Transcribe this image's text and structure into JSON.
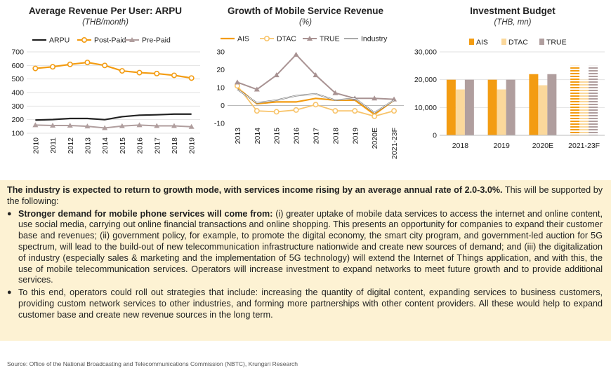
{
  "charts": {
    "arpu": {
      "title": "Average Revenue Per User: ARPU",
      "subtitle": "(THB/month)",
      "chart_data": {
        "type": "line",
        "x": [
          "2010",
          "2011",
          "2012",
          "2013",
          "2014",
          "2015",
          "2016",
          "2017",
          "2018",
          "2019"
        ],
        "series": [
          {
            "name": "ARPU",
            "values": [
              197,
              201,
              209,
              209,
              200,
              222,
              233,
              236,
              241,
              241
            ],
            "color": "#222222"
          },
          {
            "name": "Post-Paid",
            "values": [
              578,
              590,
              608,
              622,
              600,
              560,
              547,
              540,
              527,
              507
            ],
            "color": "#f39c12"
          },
          {
            "name": "Pre-Paid",
            "values": [
              160,
              157,
              157,
              151,
              139,
              153,
              160,
              154,
              154,
              148
            ],
            "color": "#b09e9e"
          }
        ],
        "ylim": [
          100,
          700
        ],
        "yticks": [
          100,
          200,
          300,
          400,
          500,
          600,
          700
        ],
        "legend": "top"
      }
    },
    "growth": {
      "title": "Growth of Mobile Service Revenue",
      "subtitle": "(%)",
      "chart_data": {
        "type": "line",
        "x": [
          "2013",
          "2014",
          "2015",
          "2016",
          "2017",
          "2018",
          "2019",
          "2020E",
          "2021-23F"
        ],
        "series": [
          {
            "name": "AIS",
            "values": [
              10,
              1,
              2,
              2,
              4,
              3,
              3,
              -5,
              3
            ],
            "color": "#f39c12"
          },
          {
            "name": "DTAC",
            "values": [
              11,
              -3,
              -3.5,
              -2.5,
              0.5,
              -3,
              -3,
              -6,
              -3
            ],
            "color": "#f8c46b"
          },
          {
            "name": "TRUE",
            "values": [
              13,
              9,
              17,
              28.5,
              17,
              7,
              4,
              4,
              3.5
            ],
            "color": "#a89292"
          },
          {
            "name": "Industry",
            "values": [
              9,
              1.5,
              3,
              5.5,
              6.5,
              3,
              4,
              -4,
              3
            ],
            "color": "#777777"
          }
        ],
        "ylim": [
          -10,
          30
        ],
        "yticks": [
          -10,
          0,
          10,
          20,
          30
        ],
        "legend": "top"
      }
    },
    "invest": {
      "title": "Investment Budget",
      "subtitle": "(THB, mn)",
      "chart_data": {
        "type": "bar",
        "categories": [
          "2018",
          "2019",
          "2020E",
          "2021-23F"
        ],
        "series": [
          {
            "name": "AIS",
            "values": [
              20000,
              20000,
              22000,
              25000
            ],
            "color": "#f39c12"
          },
          {
            "name": "DTAC",
            "values": [
              16500,
              16500,
              18000,
              20000
            ],
            "color": "#fbd89b"
          },
          {
            "name": "TRUE",
            "values": [
              20000,
              20000,
              22000,
              25000
            ],
            "color": "#b09e9e"
          }
        ],
        "ylim": [
          0,
          30000
        ],
        "yticks": [
          "0",
          "10,000",
          "20,000",
          "30,000"
        ],
        "legend": "top"
      }
    }
  },
  "text": {
    "intro_bold": "The industry is expected to return to growth mode, with services income rising by an average annual rate of 2.0-3.0%.",
    "intro_rest": " This will be supported by the following:",
    "bullet1_bold": "Stronger demand for mobile phone services will come from:",
    "bullet1_rest": " (i) greater uptake of mobile data services to access the internet and online content, use social media, carrying out online financial transactions and online shopping. This presents an opportunity for companies to expand their customer base and revenues; (ii) government policy, for example, to promote the digital economy, the smart city program, and government-led auction for 5G spectrum, will lead to the build-out of new telecommunication infrastructure nationwide and create new sources of demand; and (iii) the digitalization of industry (especially sales & marketing and the implementation of 5G technology) will extend the Internet of Things application, and with this, the use of mobile telecommunication services. Operators will increase investment to expand networks to meet future growth and to provide additional services.",
    "bullet2": "To this end, operators could roll out strategies that include: increasing the quantity of digital content, expanding services to business customers, providing custom network services to other industries, and forming more partnerships with other content providers. All these would help to expand customer base and create new revenue sources in the long term.",
    "bullet_glyph": "●"
  },
  "source": "Source: Office of the National Broadcasting and Telecommunications Commission (NBTC), Krungsri Research"
}
